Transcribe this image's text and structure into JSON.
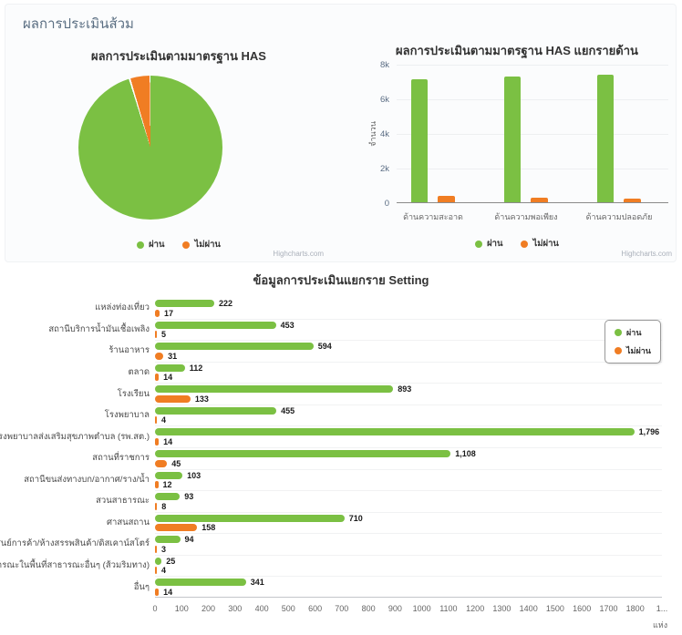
{
  "page": {
    "header": "ผลการประเมินส้วม"
  },
  "colors": {
    "pass": "#7BC043",
    "fail": "#F07D23"
  },
  "credits": "Highcharts.com",
  "chart_data": [
    {
      "type": "pie",
      "title": "ผลการประเมินตามมาตรฐาน HAS",
      "series": [
        {
          "name": "ผ่าน",
          "value": 95.3
        },
        {
          "name": "ไม่ผ่าน",
          "value": 4.7
        }
      ],
      "unit": "%",
      "legend_position": "bottom"
    },
    {
      "type": "bar",
      "title": "ผลการประเมินตามมาตรฐาน HAS แยกรายด้าน",
      "categories": [
        "ด้านความสะอาด",
        "ด้านความพอเพียง",
        "ด้านความปลอดภัย"
      ],
      "series": [
        {
          "name": "ผ่าน",
          "values": [
            7120,
            7240,
            7360
          ]
        },
        {
          "name": "ไม่ผ่าน",
          "values": [
            370,
            280,
            200
          ]
        }
      ],
      "ylabel": "จำนวน",
      "xlabel": "",
      "ylim": [
        0,
        8000
      ],
      "yticks": [
        "8k",
        "6k",
        "4k",
        "2k",
        "0"
      ],
      "grid": true,
      "legend_position": "bottom"
    },
    {
      "type": "bar-horizontal",
      "title": "ข้อมูลการประเมินแยกราย Setting",
      "categories": [
        "แหล่งท่องเที่ยว",
        "สถานีบริการน้ำมันเชื้อเพลิง",
        "ร้านอาหาร",
        "ตลาด",
        "โรงเรียน",
        "โรงพยาบาล",
        "โรงพยาบาลส่งเสริมสุขภาพตำบล (รพ.สต.)",
        "สถานที่ราชการ",
        "สถานีขนส่งทางบก/อากาศ/ราง/น้ำ",
        "สวนสาธารณะ",
        "ศาสนสถาน",
        "ศูนย์การค้า/ห้างสรรพสินค้า/ดิสเคาน์สโตร์",
        "ส้วมสาธารณะในพื้นที่สาธารณะอื่นๆ (ส้วมริมทาง)",
        "อื่นๆ"
      ],
      "series": [
        {
          "name": "ผ่าน",
          "values": [
            222,
            453,
            594,
            112,
            893,
            455,
            1796,
            1108,
            103,
            93,
            710,
            94,
            25,
            341
          ]
        },
        {
          "name": "ไม่ผ่าน",
          "values": [
            17,
            5,
            31,
            14,
            133,
            4,
            14,
            45,
            12,
            8,
            158,
            3,
            4,
            14
          ]
        }
      ],
      "xlim": [
        0,
        1900
      ],
      "xticks": [
        "0",
        "100",
        "200",
        "300",
        "400",
        "500",
        "600",
        "700",
        "800",
        "900",
        "1000",
        "1100",
        "1200",
        "1300",
        "1400",
        "1500",
        "1600",
        "1700",
        "1800",
        "1..."
      ],
      "xlabel": "แห่ง",
      "grid": true,
      "legend_position": "top-right"
    }
  ]
}
